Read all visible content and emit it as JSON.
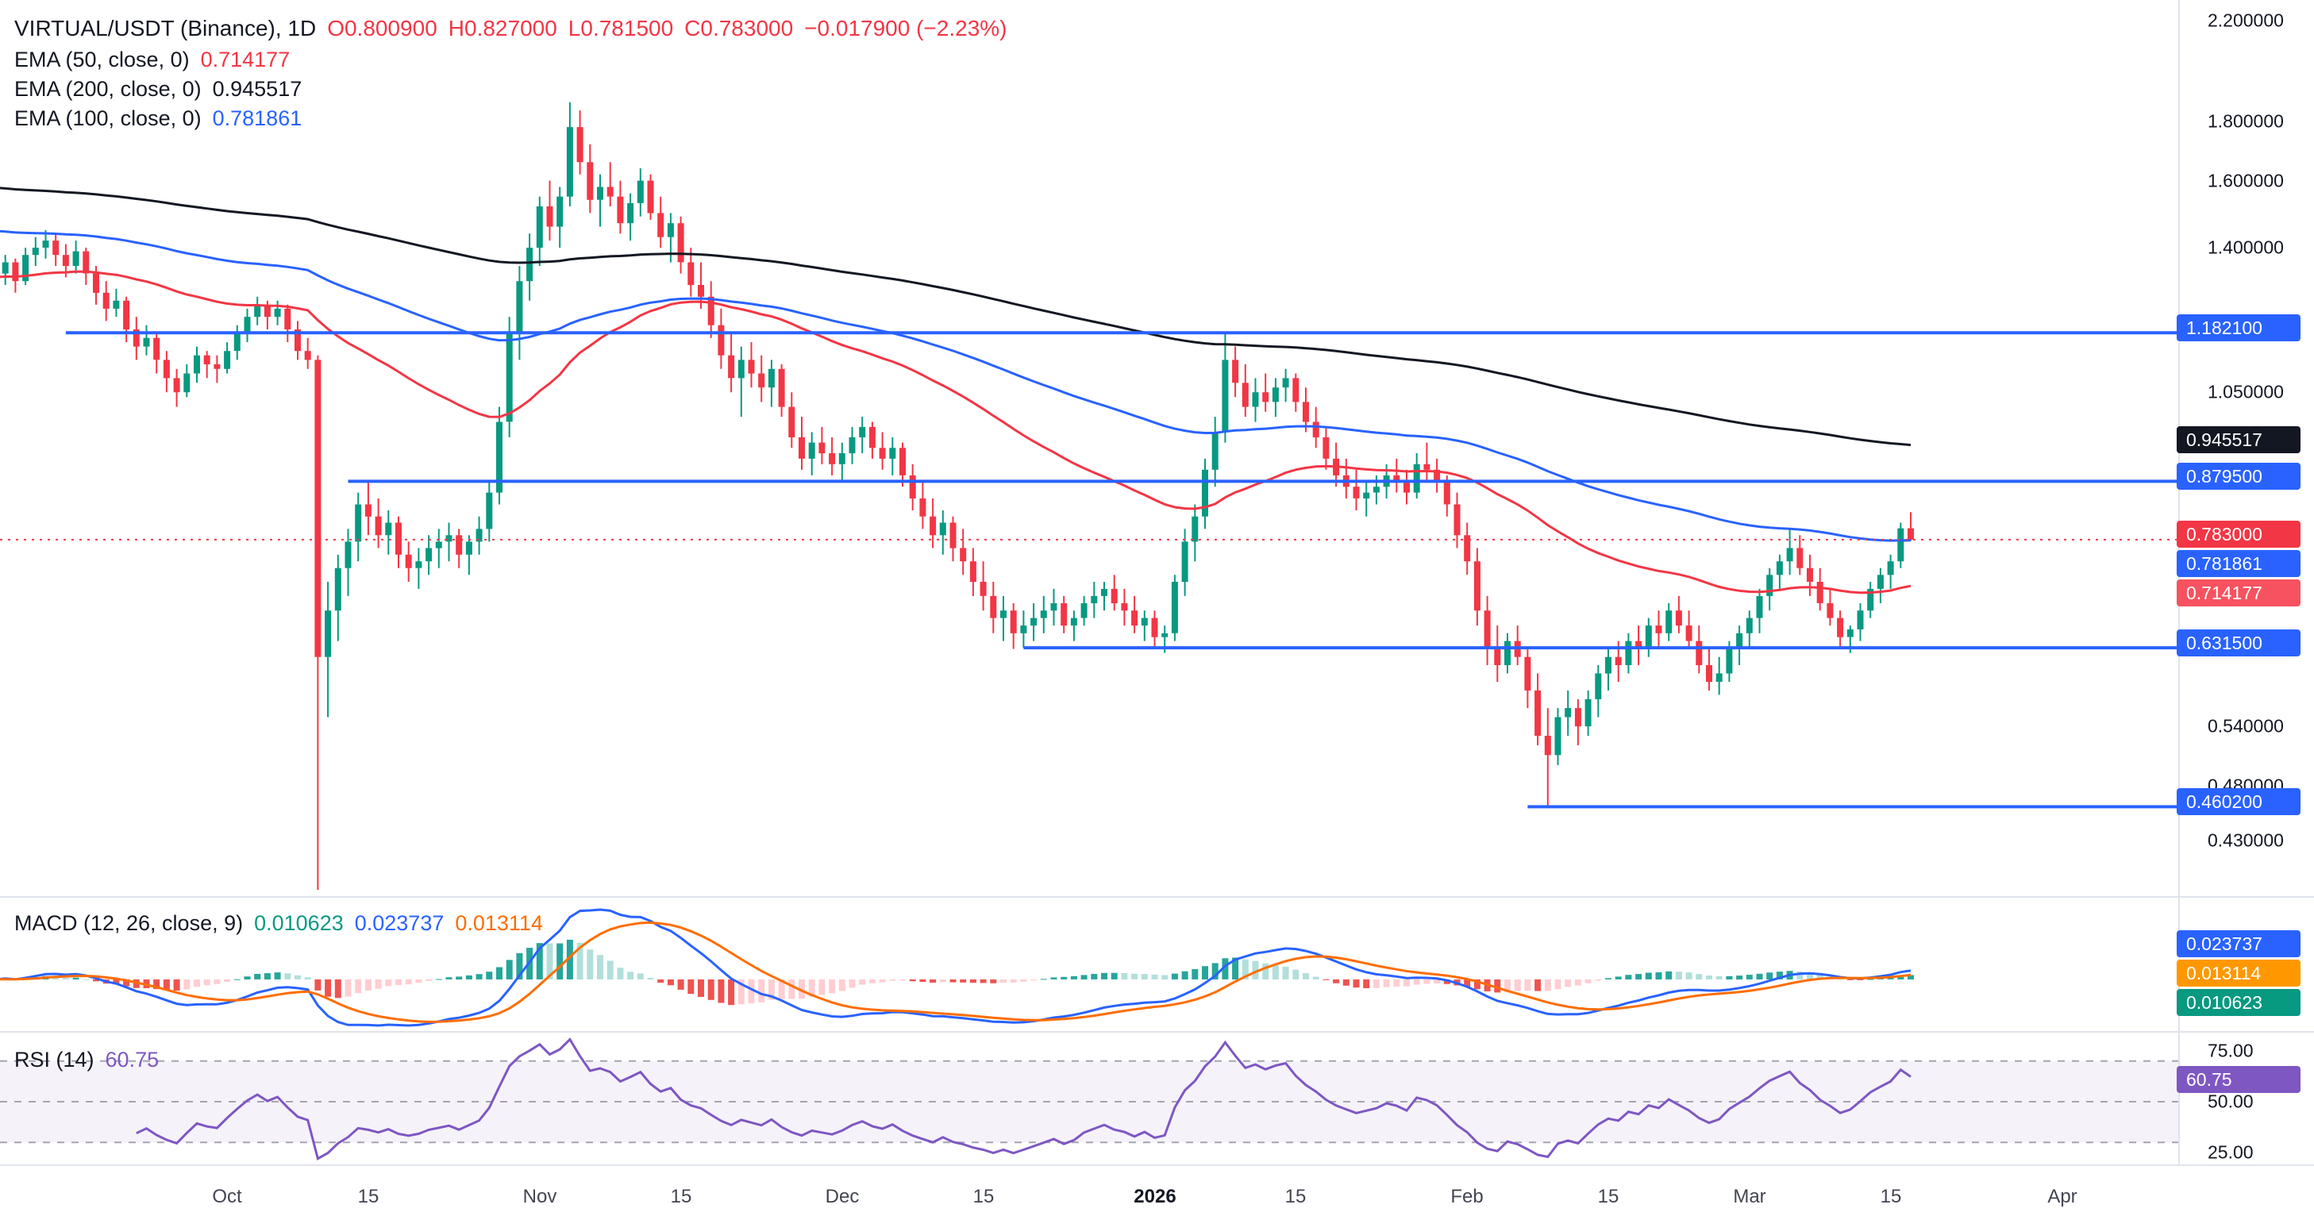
{
  "header": {
    "title": "VIRTUAL/USDT (Binance), 1D",
    "open": "O0.800900",
    "high": "H0.827000",
    "low": "L0.781500",
    "close": "C0.783000",
    "change": "−0.017900 (−2.23%)"
  },
  "indicators": {
    "ema50": {
      "label": "EMA (50, close, 0)",
      "value": "0.714177",
      "color": "#F23645"
    },
    "ema200": {
      "label": "EMA (200, close, 0)",
      "value": "0.945517",
      "color": "#131722"
    },
    "ema100": {
      "label": "EMA (100, close, 0)",
      "value": "0.781861",
      "color": "#2962FF"
    },
    "macd": {
      "label": "MACD (12, 26, close, 9)",
      "hist": "0.010623",
      "macd": "0.023737",
      "signal": "0.013114"
    },
    "rsi": {
      "label": "RSI (14)",
      "value": "60.75"
    }
  },
  "price_axis": {
    "ticks": [
      {
        "text": "2.200000",
        "price": 2.2
      },
      {
        "text": "1.800000",
        "price": 1.8
      },
      {
        "text": "1.600000",
        "price": 1.6
      },
      {
        "text": "1.400000",
        "price": 1.4
      },
      {
        "text": "1.050000",
        "price": 1.05
      },
      {
        "text": "0.540000",
        "price": 0.54
      },
      {
        "text": "0.480000",
        "price": 0.48
      },
      {
        "text": "0.430000",
        "price": 0.43
      }
    ],
    "tags": [
      {
        "text": "1.182100",
        "price": 1.1821,
        "color": "#2962FF"
      },
      {
        "text": "0.945517",
        "price": 0.945517,
        "color": "#131722"
      },
      {
        "text": "0.879500",
        "price": 0.8795,
        "color": "#2962FF"
      },
      {
        "text": "0.783000",
        "price": 0.783,
        "color": "#F23645"
      },
      {
        "text": "0.781861",
        "price": 0.781861,
        "color": "#2962FF"
      },
      {
        "text": "0.714177",
        "price": 0.714177,
        "color": "#F7525F"
      },
      {
        "text": "0.631500",
        "price": 0.6315,
        "color": "#2962FF"
      },
      {
        "text": "0.460200",
        "price": 0.4602,
        "color": "#2962FF"
      }
    ]
  },
  "macd_axis_tags": [
    {
      "text": "0.023737",
      "value": 0.023737,
      "color": "#2962FF"
    },
    {
      "text": "0.013114",
      "value": 0.013114,
      "color": "#FF9800"
    },
    {
      "text": "0.010623",
      "value": 0.010623,
      "color": "#089981"
    }
  ],
  "rsi_axis": {
    "ticks": [
      {
        "text": "75.00",
        "value": 75
      },
      {
        "text": "50.00",
        "value": 50
      },
      {
        "text": "25.00",
        "value": 25
      }
    ],
    "tag": {
      "text": "60.75",
      "value": 60.75,
      "color": "#7E57C2"
    }
  },
  "time_axis": [
    {
      "label": "Oct",
      "index": 23
    },
    {
      "label": "15",
      "index": 37
    },
    {
      "label": "Nov",
      "index": 54
    },
    {
      "label": "15",
      "index": 68
    },
    {
      "label": "Dec",
      "index": 84
    },
    {
      "label": "15",
      "index": 98
    },
    {
      "label": "2026",
      "index": 115,
      "bold": true
    },
    {
      "label": "15",
      "index": 129
    },
    {
      "label": "Feb",
      "index": 146
    },
    {
      "label": "15",
      "index": 160
    },
    {
      "label": "Mar",
      "index": 174
    },
    {
      "label": "15",
      "index": 188
    },
    {
      "label": "Apr",
      "index": 205
    }
  ],
  "chart_data": {
    "type": "candlestick",
    "title": "VIRTUAL/USDT (Binance), 1D",
    "log_scale": true,
    "last_price": 0.783,
    "last_candle_ohlc": {
      "o": 0.8009,
      "h": 0.827,
      "l": 0.7815,
      "c": 0.783
    },
    "indicator_params": {
      "ema": [
        50,
        100,
        200
      ],
      "macd": [
        12,
        26,
        9
      ],
      "rsi": 14
    },
    "levels": [
      {
        "price": 1.1821,
        "from": 7
      },
      {
        "price": 0.8795,
        "from": 35
      },
      {
        "price": 0.6315,
        "from": 102
      },
      {
        "price": 0.4602,
        "from": 152
      }
    ],
    "candles": [
      [
        1.3,
        1.36,
        1.27,
        1.33
      ],
      [
        1.33,
        1.38,
        1.3,
        1.36
      ],
      [
        1.36,
        1.37,
        1.28,
        1.31
      ],
      [
        1.31,
        1.4,
        1.3,
        1.38
      ],
      [
        1.38,
        1.43,
        1.35,
        1.4
      ],
      [
        1.4,
        1.45,
        1.37,
        1.42
      ],
      [
        1.42,
        1.44,
        1.35,
        1.38
      ],
      [
        1.38,
        1.41,
        1.32,
        1.35
      ],
      [
        1.35,
        1.42,
        1.33,
        1.39
      ],
      [
        1.39,
        1.4,
        1.3,
        1.33
      ],
      [
        1.33,
        1.35,
        1.25,
        1.28
      ],
      [
        1.28,
        1.31,
        1.21,
        1.24
      ],
      [
        1.24,
        1.29,
        1.22,
        1.26
      ],
      [
        1.26,
        1.27,
        1.16,
        1.19
      ],
      [
        1.19,
        1.22,
        1.12,
        1.15
      ],
      [
        1.15,
        1.2,
        1.13,
        1.17
      ],
      [
        1.17,
        1.18,
        1.09,
        1.12
      ],
      [
        1.12,
        1.14,
        1.05,
        1.08
      ],
      [
        1.08,
        1.1,
        1.02,
        1.05
      ],
      [
        1.05,
        1.11,
        1.04,
        1.09
      ],
      [
        1.09,
        1.15,
        1.07,
        1.13
      ],
      [
        1.13,
        1.14,
        1.08,
        1.11
      ],
      [
        1.11,
        1.13,
        1.07,
        1.1
      ],
      [
        1.1,
        1.16,
        1.09,
        1.14
      ],
      [
        1.14,
        1.2,
        1.12,
        1.18
      ],
      [
        1.18,
        1.24,
        1.16,
        1.22
      ],
      [
        1.22,
        1.27,
        1.2,
        1.25
      ],
      [
        1.25,
        1.26,
        1.19,
        1.22
      ],
      [
        1.22,
        1.26,
        1.2,
        1.24
      ],
      [
        1.24,
        1.25,
        1.16,
        1.19
      ],
      [
        1.19,
        1.21,
        1.12,
        1.14
      ],
      [
        1.14,
        1.17,
        1.1,
        1.12
      ],
      [
        1.12,
        1.13,
        0.39,
        0.62
      ],
      [
        0.62,
        0.72,
        0.55,
        0.68
      ],
      [
        0.68,
        0.76,
        0.64,
        0.74
      ],
      [
        0.74,
        0.8,
        0.7,
        0.78
      ],
      [
        0.78,
        0.86,
        0.75,
        0.84
      ],
      [
        0.84,
        0.8795,
        0.79,
        0.82
      ],
      [
        0.82,
        0.85,
        0.77,
        0.79
      ],
      [
        0.79,
        0.83,
        0.76,
        0.81
      ],
      [
        0.81,
        0.82,
        0.74,
        0.76
      ],
      [
        0.76,
        0.78,
        0.72,
        0.74
      ],
      [
        0.74,
        0.77,
        0.71,
        0.75
      ],
      [
        0.75,
        0.79,
        0.73,
        0.77
      ],
      [
        0.77,
        0.8,
        0.74,
        0.78
      ],
      [
        0.78,
        0.81,
        0.75,
        0.79
      ],
      [
        0.79,
        0.8,
        0.74,
        0.76
      ],
      [
        0.76,
        0.79,
        0.73,
        0.78
      ],
      [
        0.78,
        0.82,
        0.76,
        0.8
      ],
      [
        0.8,
        0.88,
        0.78,
        0.86
      ],
      [
        0.86,
        1.02,
        0.84,
        0.99
      ],
      [
        0.99,
        1.22,
        0.96,
        1.18
      ],
      [
        1.18,
        1.35,
        1.12,
        1.31
      ],
      [
        1.31,
        1.44,
        1.26,
        1.4
      ],
      [
        1.4,
        1.55,
        1.35,
        1.52
      ],
      [
        1.52,
        1.6,
        1.42,
        1.46
      ],
      [
        1.46,
        1.58,
        1.4,
        1.55
      ],
      [
        1.55,
        1.87,
        1.52,
        1.78
      ],
      [
        1.78,
        1.84,
        1.62,
        1.66
      ],
      [
        1.66,
        1.72,
        1.5,
        1.54
      ],
      [
        1.54,
        1.62,
        1.46,
        1.58
      ],
      [
        1.58,
        1.66,
        1.52,
        1.55
      ],
      [
        1.55,
        1.6,
        1.44,
        1.47
      ],
      [
        1.47,
        1.56,
        1.42,
        1.53
      ],
      [
        1.53,
        1.64,
        1.49,
        1.6
      ],
      [
        1.6,
        1.62,
        1.48,
        1.5
      ],
      [
        1.5,
        1.55,
        1.4,
        1.43
      ],
      [
        1.43,
        1.5,
        1.36,
        1.47
      ],
      [
        1.47,
        1.49,
        1.33,
        1.36
      ],
      [
        1.36,
        1.4,
        1.27,
        1.3
      ],
      [
        1.3,
        1.36,
        1.24,
        1.27
      ],
      [
        1.27,
        1.31,
        1.17,
        1.2
      ],
      [
        1.2,
        1.24,
        1.1,
        1.13
      ],
      [
        1.13,
        1.18,
        1.05,
        1.08
      ],
      [
        1.08,
        1.15,
        1.0,
        1.12
      ],
      [
        1.12,
        1.16,
        1.06,
        1.09
      ],
      [
        1.09,
        1.13,
        1.03,
        1.06
      ],
      [
        1.06,
        1.12,
        1.02,
        1.1
      ],
      [
        1.1,
        1.11,
        1.0,
        1.02
      ],
      [
        1.02,
        1.05,
        0.94,
        0.96
      ],
      [
        0.96,
        1.0,
        0.9,
        0.92
      ],
      [
        0.92,
        0.97,
        0.89,
        0.95
      ],
      [
        0.95,
        0.98,
        0.91,
        0.93
      ],
      [
        0.93,
        0.96,
        0.89,
        0.91
      ],
      [
        0.91,
        0.95,
        0.88,
        0.93
      ],
      [
        0.93,
        0.98,
        0.91,
        0.96
      ],
      [
        0.96,
        1.0,
        0.93,
        0.98
      ],
      [
        0.98,
        0.99,
        0.92,
        0.94
      ],
      [
        0.94,
        0.97,
        0.9,
        0.92
      ],
      [
        0.92,
        0.96,
        0.89,
        0.94
      ],
      [
        0.94,
        0.95,
        0.87,
        0.89
      ],
      [
        0.89,
        0.91,
        0.83,
        0.85
      ],
      [
        0.85,
        0.88,
        0.8,
        0.82
      ],
      [
        0.82,
        0.85,
        0.77,
        0.79
      ],
      [
        0.79,
        0.83,
        0.76,
        0.81
      ],
      [
        0.81,
        0.82,
        0.75,
        0.77
      ],
      [
        0.77,
        0.8,
        0.73,
        0.75
      ],
      [
        0.75,
        0.77,
        0.7,
        0.72
      ],
      [
        0.72,
        0.75,
        0.68,
        0.7
      ],
      [
        0.7,
        0.72,
        0.65,
        0.67
      ],
      [
        0.67,
        0.7,
        0.64,
        0.68
      ],
      [
        0.68,
        0.69,
        0.63,
        0.65
      ],
      [
        0.65,
        0.68,
        0.6315,
        0.66
      ],
      [
        0.66,
        0.69,
        0.64,
        0.67
      ],
      [
        0.67,
        0.7,
        0.65,
        0.68
      ],
      [
        0.68,
        0.71,
        0.66,
        0.69
      ],
      [
        0.69,
        0.7,
        0.65,
        0.66
      ],
      [
        0.66,
        0.68,
        0.64,
        0.67
      ],
      [
        0.67,
        0.7,
        0.66,
        0.69
      ],
      [
        0.69,
        0.72,
        0.67,
        0.7
      ],
      [
        0.7,
        0.72,
        0.68,
        0.71
      ],
      [
        0.71,
        0.73,
        0.68,
        0.69
      ],
      [
        0.69,
        0.71,
        0.66,
        0.68
      ],
      [
        0.68,
        0.7,
        0.65,
        0.66
      ],
      [
        0.66,
        0.68,
        0.64,
        0.67
      ],
      [
        0.67,
        0.68,
        0.63,
        0.645
      ],
      [
        0.645,
        0.66,
        0.625,
        0.65
      ],
      [
        0.65,
        0.73,
        0.64,
        0.72
      ],
      [
        0.72,
        0.8,
        0.7,
        0.78
      ],
      [
        0.78,
        0.84,
        0.75,
        0.82
      ],
      [
        0.82,
        0.92,
        0.8,
        0.9
      ],
      [
        0.9,
        1.0,
        0.87,
        0.97
      ],
      [
        0.97,
        1.1821,
        0.95,
        1.12
      ],
      [
        1.12,
        1.15,
        1.04,
        1.07
      ],
      [
        1.07,
        1.11,
        1.0,
        1.02
      ],
      [
        1.02,
        1.08,
        0.99,
        1.05
      ],
      [
        1.05,
        1.09,
        1.01,
        1.03
      ],
      [
        1.03,
        1.08,
        1.0,
        1.06
      ],
      [
        1.06,
        1.1,
        1.03,
        1.08
      ],
      [
        1.08,
        1.09,
        1.01,
        1.03
      ],
      [
        1.03,
        1.06,
        0.97,
        0.99
      ],
      [
        0.99,
        1.02,
        0.94,
        0.96
      ],
      [
        0.96,
        0.98,
        0.9,
        0.92
      ],
      [
        0.92,
        0.95,
        0.87,
        0.89
      ],
      [
        0.89,
        0.92,
        0.85,
        0.87
      ],
      [
        0.87,
        0.9,
        0.83,
        0.85
      ],
      [
        0.85,
        0.88,
        0.82,
        0.86
      ],
      [
        0.86,
        0.89,
        0.84,
        0.87
      ],
      [
        0.87,
        0.91,
        0.85,
        0.89
      ],
      [
        0.89,
        0.92,
        0.86,
        0.88
      ],
      [
        0.88,
        0.9,
        0.84,
        0.86
      ],
      [
        0.86,
        0.93,
        0.85,
        0.91
      ],
      [
        0.91,
        0.95,
        0.88,
        0.9
      ],
      [
        0.9,
        0.92,
        0.86,
        0.88
      ],
      [
        0.88,
        0.89,
        0.82,
        0.84
      ],
      [
        0.84,
        0.86,
        0.77,
        0.79
      ],
      [
        0.79,
        0.81,
        0.73,
        0.75
      ],
      [
        0.75,
        0.77,
        0.66,
        0.68
      ],
      [
        0.68,
        0.7,
        0.61,
        0.63
      ],
      [
        0.63,
        0.66,
        0.59,
        0.61
      ],
      [
        0.61,
        0.65,
        0.6,
        0.64
      ],
      [
        0.64,
        0.66,
        0.61,
        0.62
      ],
      [
        0.62,
        0.63,
        0.56,
        0.58
      ],
      [
        0.58,
        0.6,
        0.52,
        0.53
      ],
      [
        0.53,
        0.56,
        0.4602,
        0.51
      ],
      [
        0.51,
        0.56,
        0.5,
        0.55
      ],
      [
        0.55,
        0.58,
        0.53,
        0.56
      ],
      [
        0.56,
        0.57,
        0.52,
        0.54
      ],
      [
        0.54,
        0.58,
        0.53,
        0.57
      ],
      [
        0.57,
        0.61,
        0.55,
        0.6
      ],
      [
        0.6,
        0.63,
        0.58,
        0.62
      ],
      [
        0.62,
        0.64,
        0.59,
        0.61
      ],
      [
        0.61,
        0.65,
        0.6,
        0.64
      ],
      [
        0.64,
        0.66,
        0.61,
        0.63
      ],
      [
        0.63,
        0.67,
        0.62,
        0.66
      ],
      [
        0.66,
        0.68,
        0.63,
        0.65
      ],
      [
        0.65,
        0.69,
        0.64,
        0.68
      ],
      [
        0.68,
        0.7,
        0.65,
        0.66
      ],
      [
        0.66,
        0.68,
        0.63,
        0.64
      ],
      [
        0.64,
        0.66,
        0.6,
        0.61
      ],
      [
        0.61,
        0.63,
        0.58,
        0.59
      ],
      [
        0.59,
        0.62,
        0.575,
        0.6
      ],
      [
        0.6,
        0.64,
        0.59,
        0.63
      ],
      [
        0.63,
        0.66,
        0.61,
        0.65
      ],
      [
        0.65,
        0.68,
        0.63,
        0.67
      ],
      [
        0.67,
        0.71,
        0.65,
        0.7
      ],
      [
        0.7,
        0.74,
        0.68,
        0.73
      ],
      [
        0.73,
        0.76,
        0.71,
        0.75
      ],
      [
        0.75,
        0.8,
        0.73,
        0.77
      ],
      [
        0.77,
        0.79,
        0.73,
        0.74
      ],
      [
        0.74,
        0.76,
        0.7,
        0.72
      ],
      [
        0.72,
        0.74,
        0.68,
        0.69
      ],
      [
        0.69,
        0.71,
        0.66,
        0.67
      ],
      [
        0.67,
        0.68,
        0.63,
        0.645
      ],
      [
        0.645,
        0.66,
        0.625,
        0.655
      ],
      [
        0.655,
        0.69,
        0.64,
        0.68
      ],
      [
        0.68,
        0.72,
        0.67,
        0.71
      ],
      [
        0.71,
        0.74,
        0.69,
        0.73
      ],
      [
        0.73,
        0.76,
        0.71,
        0.75
      ],
      [
        0.75,
        0.81,
        0.74,
        0.8009
      ],
      [
        0.8009,
        0.827,
        0.7815,
        0.783
      ]
    ]
  }
}
